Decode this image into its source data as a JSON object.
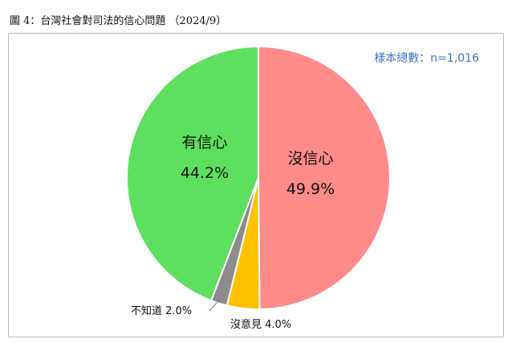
{
  "page": {
    "title": "圖 4：台灣社會對司法的信心問題 （2024/9）"
  },
  "sample_note": "樣本總數：n=1,016",
  "chart_data": {
    "type": "pie",
    "title": "",
    "start": "12 o'clock",
    "direction": "clockwise",
    "slices": [
      {
        "name": "沒信心",
        "value": 49.9,
        "label": "49.9%",
        "color": "#ff8a8a",
        "label_position": "inside"
      },
      {
        "name": "沒意見",
        "value": 4.0,
        "label": "4.0%",
        "color": "#ffc000",
        "label_position": "outside"
      },
      {
        "name": "不知道",
        "value": 2.0,
        "label": "2.0%",
        "color": "#8c8c8c",
        "label_position": "outside"
      },
      {
        "name": "有信心",
        "value": 44.2,
        "label": "44.2%",
        "color": "#5ee05e",
        "label_position": "inside"
      }
    ]
  }
}
